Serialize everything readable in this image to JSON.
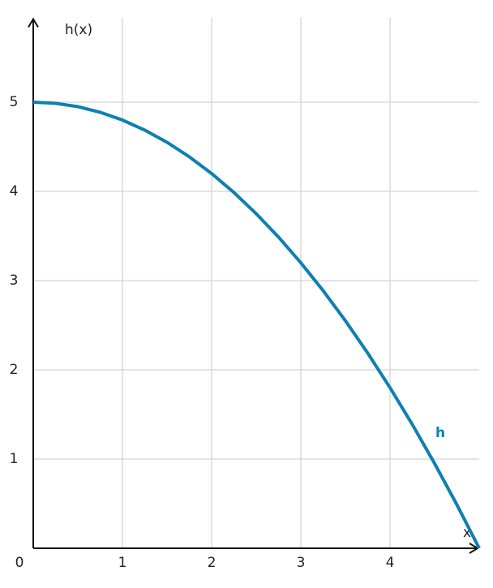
{
  "chart_data": {
    "type": "line",
    "y_label": "h(x)",
    "x_label": "x",
    "x": [
      0,
      0.25,
      0.5,
      0.75,
      1,
      1.25,
      1.5,
      1.75,
      2,
      2.25,
      2.5,
      2.75,
      3,
      3.25,
      3.5,
      3.75,
      4,
      4.25,
      4.5,
      4.75,
      5
    ],
    "series": [
      {
        "name": "h",
        "color": "#0e80b0",
        "values": [
          5,
          4.9875,
          4.95,
          4.8875,
          4.8,
          4.6875,
          4.55,
          4.3875,
          4.2,
          3.9875,
          3.75,
          3.4875,
          3.2,
          2.8875,
          2.55,
          2.1875,
          1.8,
          1.3875,
          0.95,
          0.4875,
          0
        ]
      }
    ],
    "xlim": [
      0,
      5
    ],
    "ylim": [
      0,
      5.95
    ],
    "xticks": [
      0,
      1,
      2,
      3,
      4
    ],
    "yticks": [
      1,
      2,
      3,
      4,
      5
    ],
    "grid": true
  }
}
